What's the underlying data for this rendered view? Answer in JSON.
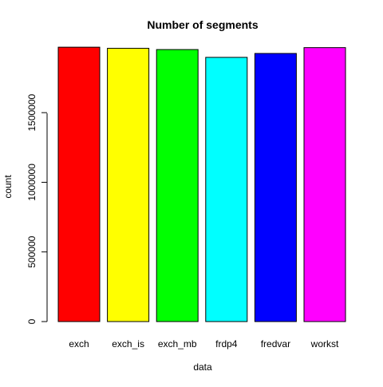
{
  "chart_data": {
    "type": "bar",
    "title": "Number of segments",
    "xlabel": "data",
    "ylabel": "count",
    "categories": [
      "exch",
      "exch_is",
      "exch_mb",
      "frdp4",
      "fredvar",
      "workst"
    ],
    "values": [
      1970000,
      1962000,
      1953000,
      1897000,
      1925000,
      1967000
    ],
    "colors": [
      "#FF0000",
      "#FFFF00",
      "#00FF00",
      "#00FFFF",
      "#0000FF",
      "#FF00FF"
    ],
    "ylim": [
      0,
      2050000
    ],
    "yticks": [
      0,
      500000,
      1000000,
      1500000
    ],
    "ytick_labels": [
      "0",
      "500000",
      "1000000",
      "1500000"
    ],
    "grid": false,
    "legend": "none"
  }
}
